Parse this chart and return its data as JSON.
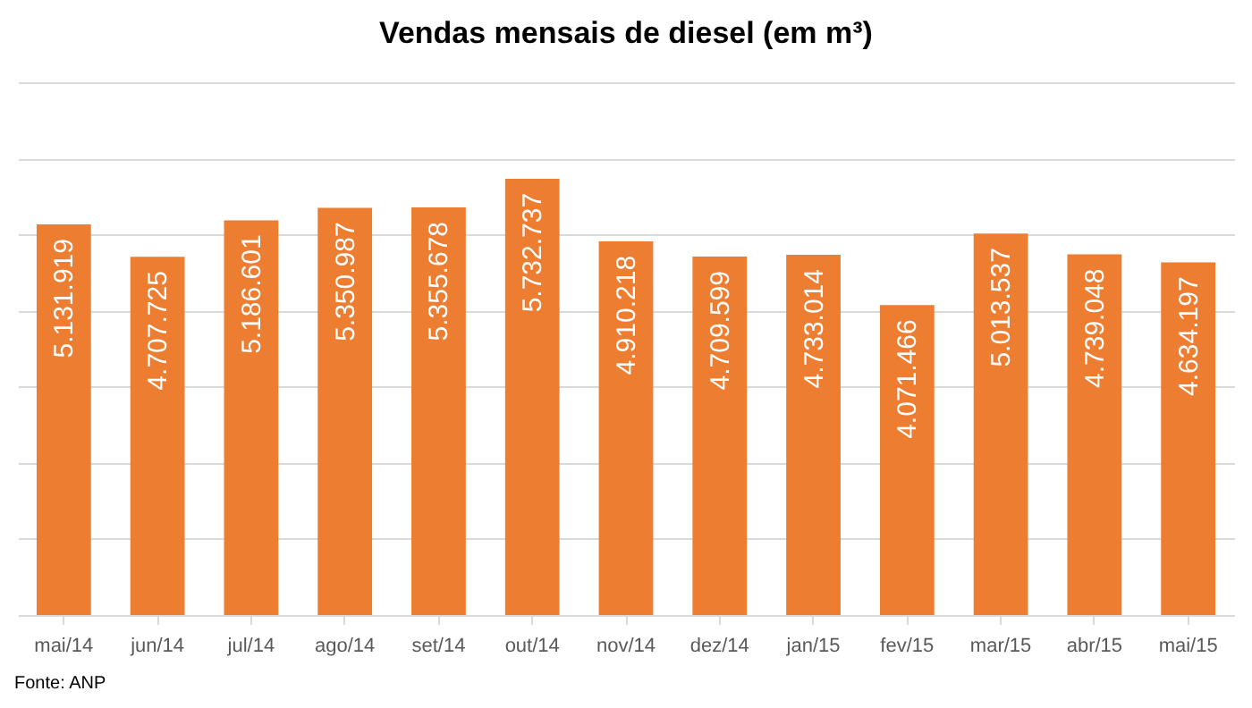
{
  "chart_data": {
    "type": "bar",
    "title": "Vendas mensais de diesel (em m³)",
    "categories": [
      "mai/14",
      "jun/14",
      "jul/14",
      "ago/14",
      "set/14",
      "out/14",
      "nov/14",
      "dez/14",
      "jan/15",
      "fev/15",
      "mar/15",
      "abr/15",
      "mai/15"
    ],
    "values": [
      5131919,
      4707725,
      5186601,
      5350987,
      5355678,
      5732737,
      4910218,
      4709599,
      4733014,
      4071466,
      5013537,
      4739048,
      4634197
    ],
    "value_labels": [
      "5.131.919",
      "4.707.725",
      "5.186.601",
      "5.350.987",
      "5.355.678",
      "5.732.737",
      "4.910.218",
      "4.709.599",
      "4.733.014",
      "4.071.466",
      "5.013.537",
      "4.739.048",
      "4.634.197"
    ],
    "color": "#ed7d31",
    "ylim": [
      0,
      7000000
    ],
    "yticks": [
      {
        "value": 0,
        "label": null
      },
      {
        "value": 1000000,
        "label": null
      },
      {
        "value": 2000000,
        "label": null
      },
      {
        "value": 3000000,
        "label": null
      },
      {
        "value": 4000000,
        "label": null
      },
      {
        "value": 5000000,
        "label": null
      },
      {
        "value": 6000000,
        "label": null
      },
      {
        "value": 7000000,
        "label": null
      }
    ],
    "grid": "y",
    "tick_labels": "x",
    "annotations": [
      "Fonte: ANP"
    ]
  }
}
